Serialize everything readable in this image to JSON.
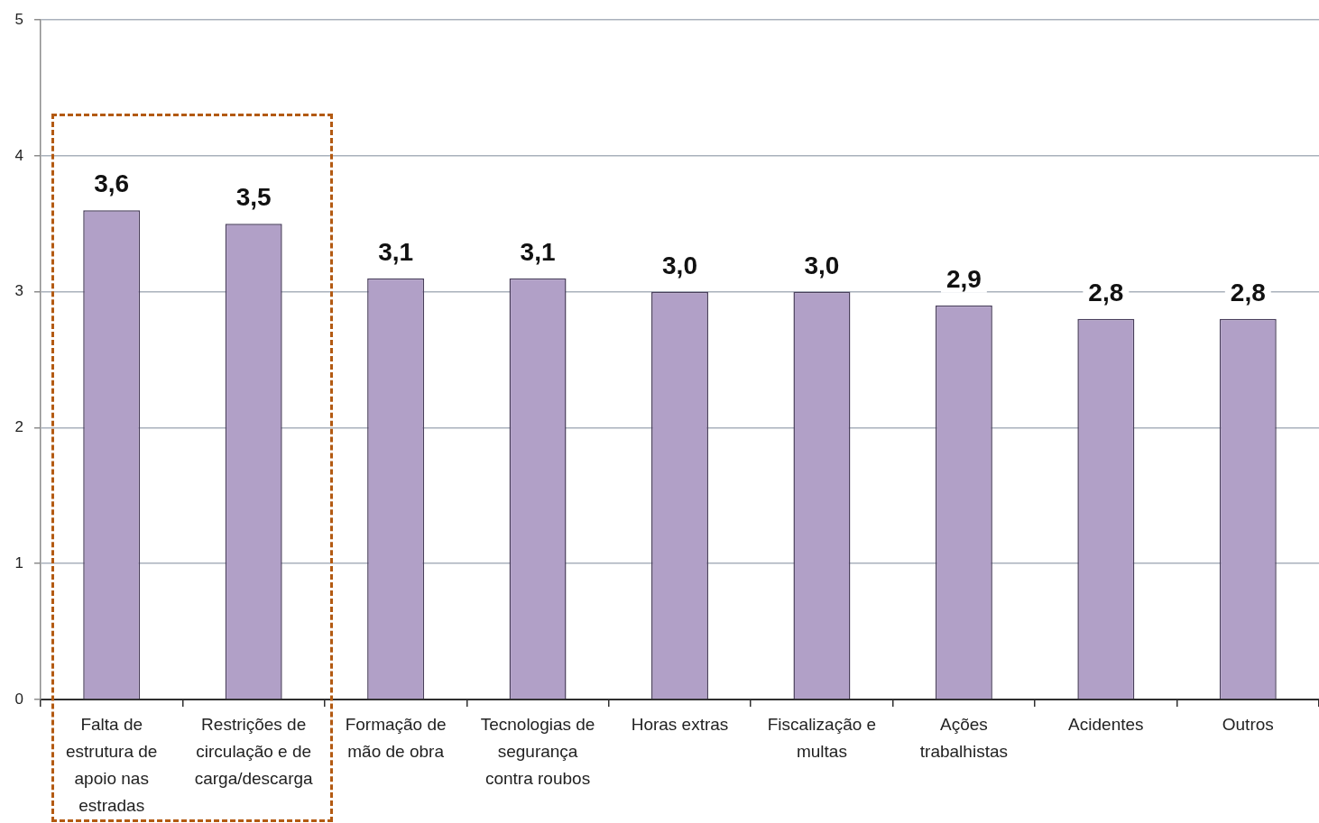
{
  "chart_data": {
    "type": "bar",
    "categories": [
      "Falta de estrutura de apoio nas estradas",
      "Restrições de circulação e de carga/descarga",
      "Formação de mão de obra",
      "Tecnologias de segurança contra roubos",
      "Horas extras",
      "Fiscalização e multas",
      "Ações trabalhistas",
      "Acidentes",
      "Outros"
    ],
    "values": [
      3.6,
      3.5,
      3.1,
      3.1,
      3.0,
      3.0,
      2.9,
      2.8,
      2.8
    ],
    "value_labels": [
      "3,6",
      "3,5",
      "3,1",
      "3,1",
      "3,0",
      "3,0",
      "2,9",
      "2,8",
      "2,8"
    ],
    "color": "#b1a0c7",
    "ylim": [
      0,
      5
    ],
    "yticks": [
      0,
      1,
      2,
      3,
      4,
      5
    ],
    "grid": "y"
  }
}
